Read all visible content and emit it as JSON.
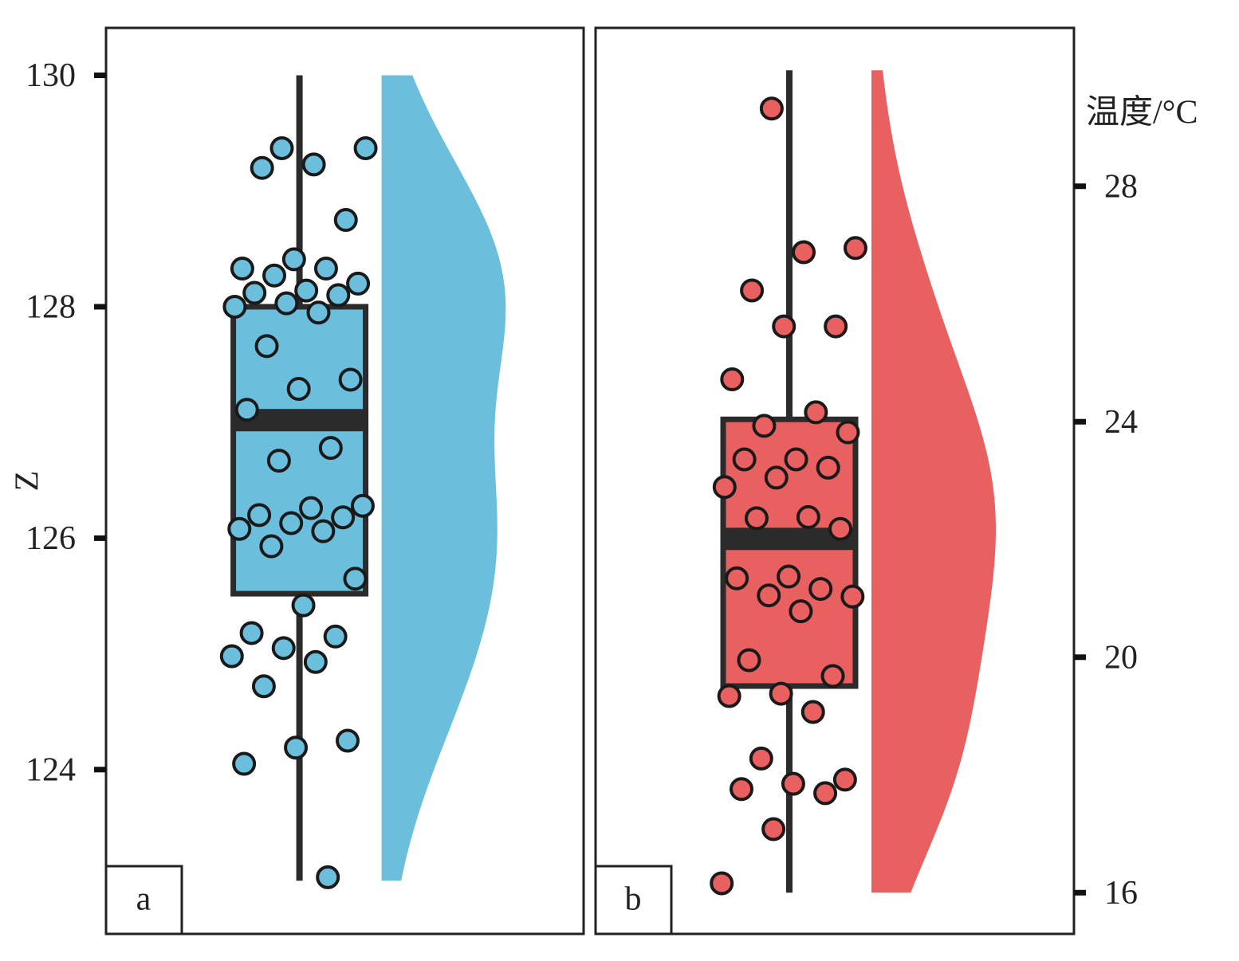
{
  "chart_data": [
    {
      "type": "raincloud",
      "panel_label": "a",
      "y_label": "Z",
      "axis_side": "left",
      "color": "#6bbfdd",
      "ylim": [
        122.58,
        130.41
      ],
      "yticks": [
        124,
        126,
        128,
        130
      ],
      "box": {
        "whisker_low": 123.04,
        "q1": 125.52,
        "median": 127.02,
        "q3": 128.0,
        "whisker_high": 130.0
      },
      "values": [
        129.37,
        129.37,
        129.23,
        129.2,
        128.75,
        128.41,
        128.33,
        128.33,
        128.27,
        128.2,
        128.14,
        128.12,
        128.1,
        128.03,
        128.0,
        127.95,
        127.66,
        127.37,
        127.29,
        127.11,
        126.78,
        126.67,
        126.28,
        126.26,
        126.2,
        126.18,
        126.13,
        126.08,
        126.06,
        125.93,
        125.65,
        125.42,
        125.18,
        125.15,
        125.05,
        124.98,
        124.93,
        124.72,
        124.25,
        124.19,
        124.05,
        123.07
      ]
    },
    {
      "type": "raincloud",
      "panel_label": "b",
      "y_label": "温度/°C",
      "axis_side": "right",
      "color": "#e86060",
      "ylim": [
        15.3,
        30.69
      ],
      "yticks": [
        16,
        20,
        24,
        28
      ],
      "box": {
        "whisker_low": 16.0,
        "q1": 19.51,
        "median": 22.01,
        "q3": 24.04,
        "whisker_high": 29.97
      },
      "values": [
        29.32,
        26.95,
        26.88,
        26.23,
        25.62,
        25.62,
        24.72,
        24.16,
        23.93,
        23.82,
        23.36,
        23.36,
        23.22,
        23.05,
        22.89,
        22.38,
        22.36,
        22.18,
        21.37,
        21.34,
        21.16,
        21.05,
        21.03,
        20.78,
        19.95,
        19.68,
        19.38,
        19.34,
        19.07,
        18.28,
        17.92,
        17.85,
        17.76,
        17.69,
        17.08,
        16.16
      ]
    }
  ]
}
